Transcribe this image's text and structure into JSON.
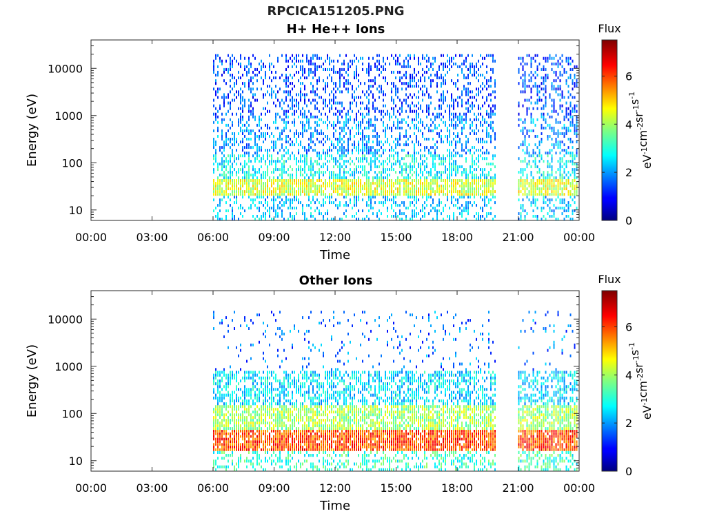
{
  "title": "RPCICA151205.PNG",
  "colorbar": {
    "label": "Flux",
    "unit_base": "eV",
    "unit_parts": [
      {
        "t": "eV",
        "sup": "-1"
      },
      {
        "t": "cm",
        "sup": "-2"
      },
      {
        "t": "sr",
        "sup": "-1"
      },
      {
        "t": "s",
        "sup": "-1"
      }
    ],
    "ticks": [
      "0",
      "2",
      "4",
      "6"
    ],
    "range": [
      0,
      7.5
    ],
    "colormap": "jet"
  },
  "chart_data": [
    {
      "type": "heatmap",
      "title": "H+ He++ Ions",
      "xlabel": "Time",
      "ylabel": "Energy (eV)",
      "yscale": "log",
      "ylim": [
        6,
        40000
      ],
      "xlim_hours": [
        0,
        24
      ],
      "x_ticks": [
        "00:00",
        "03:00",
        "06:00",
        "09:00",
        "12:00",
        "15:00",
        "18:00",
        "21:00",
        "00:00"
      ],
      "y_ticks": [
        "10",
        "100",
        "1000",
        "10000"
      ],
      "data_intervals_hours": [
        [
          6.0,
          19.9
        ],
        [
          21.0,
          23.9
        ]
      ],
      "bands": [
        {
          "e_min": 6,
          "e_max": 20,
          "flux": 2.4,
          "density": 0.35
        },
        {
          "e_min": 20,
          "e_max": 45,
          "flux": 4.4,
          "density": 0.85
        },
        {
          "e_min": 45,
          "e_max": 150,
          "flux": 2.8,
          "density": 0.5
        },
        {
          "e_min": 150,
          "e_max": 1000,
          "flux": 2.0,
          "density": 0.4
        },
        {
          "e_min": 1000,
          "e_max": 20000,
          "flux": 1.5,
          "density": 0.35
        }
      ]
    },
    {
      "type": "heatmap",
      "title": "Other Ions",
      "xlabel": "Time",
      "ylabel": "Energy (eV)",
      "yscale": "log",
      "ylim": [
        6,
        40000
      ],
      "xlim_hours": [
        0,
        24
      ],
      "x_ticks": [
        "00:00",
        "03:00",
        "06:00",
        "09:00",
        "12:00",
        "15:00",
        "18:00",
        "21:00",
        "00:00"
      ],
      "y_ticks": [
        "10",
        "100",
        "1000",
        "10000"
      ],
      "data_intervals_hours": [
        [
          6.0,
          19.9
        ],
        [
          21.0,
          23.9
        ]
      ],
      "bands": [
        {
          "e_min": 6,
          "e_max": 16,
          "flux": 3.2,
          "density": 0.4
        },
        {
          "e_min": 16,
          "e_max": 45,
          "flux": 6.0,
          "density": 0.9
        },
        {
          "e_min": 45,
          "e_max": 150,
          "flux": 4.0,
          "density": 0.75
        },
        {
          "e_min": 150,
          "e_max": 800,
          "flux": 2.6,
          "density": 0.55
        },
        {
          "e_min": 800,
          "e_max": 15000,
          "flux": 1.8,
          "density": 0.08
        }
      ]
    }
  ]
}
